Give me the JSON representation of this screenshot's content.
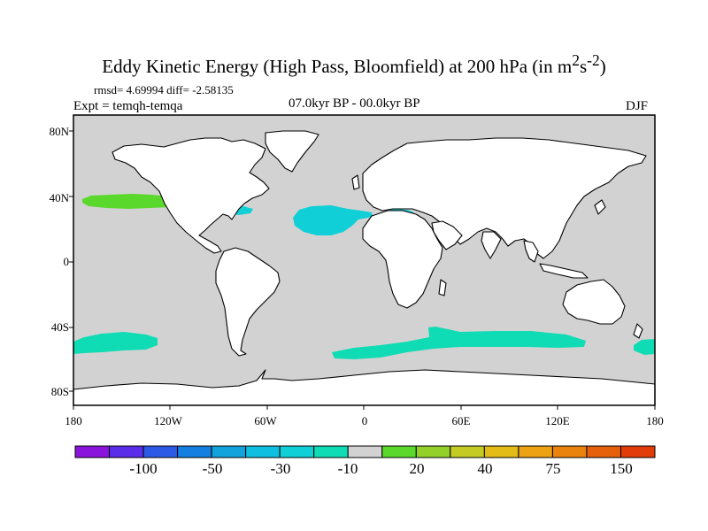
{
  "title": {
    "main": "Eddy Kinetic Energy (High Pass, Bloomfield) at 200 hPa (in m",
    "sup1": "2",
    "mid": "s",
    "sup2": "-2",
    "close": ")"
  },
  "stats": "rmsd= 4.69994 diff= -2.58135",
  "experiment": "Expt = temqh-temqa",
  "period": "07.0kyr BP - 00.0kyr BP",
  "season": "DJF",
  "lat_labels": [
    "80N",
    "40N",
    "0",
    "40S",
    "80S"
  ],
  "lon_labels": [
    "180",
    "120W",
    "60W",
    "0",
    "60E",
    "120E",
    "180"
  ],
  "colorbar": {
    "colors": [
      "#8a14dc",
      "#5a2de8",
      "#2c5ae6",
      "#147fe0",
      "#12a3dc",
      "#0ebfe0",
      "#10cfd6",
      "#0fdcb4",
      "#d2d2d2",
      "#5ad82c",
      "#94d02a",
      "#c4cc24",
      "#e4bc18",
      "#eca212",
      "#ea820e",
      "#e6600c",
      "#e23c0a"
    ],
    "labels": [
      "-100",
      "-50",
      "-30",
      "-10",
      "20",
      "40",
      "75",
      "150"
    ]
  },
  "fills": {
    "land": "#ffffff",
    "ocean": "#d2d2d2",
    "neg_10": "#0fdcb4",
    "neg_20": "#10cfd6",
    "pos_20": "#5ad82c"
  }
}
